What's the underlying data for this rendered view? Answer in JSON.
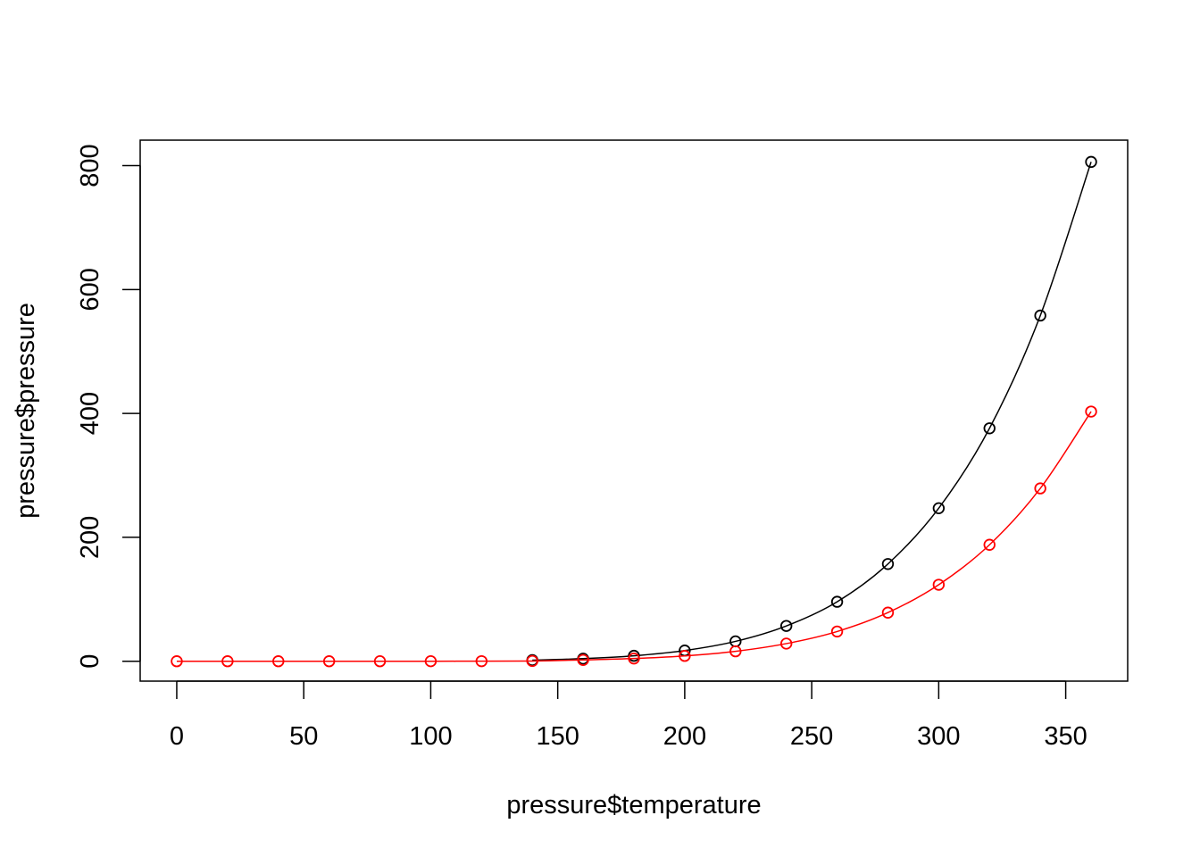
{
  "chart_data": {
    "type": "line",
    "title": "",
    "xlabel": "pressure$temperature",
    "ylabel": "pressure$pressure",
    "xlim": [
      -14.4,
      374.4
    ],
    "ylim": [
      -32.1,
      841.1
    ],
    "x_ticks": [
      0,
      50,
      100,
      150,
      200,
      250,
      300,
      350
    ],
    "y_ticks": [
      0,
      200,
      400,
      600,
      800
    ],
    "grid": false,
    "legend": "none",
    "x": [
      0,
      20,
      40,
      60,
      80,
      100,
      120,
      140,
      160,
      180,
      200,
      220,
      240,
      260,
      280,
      300,
      320,
      340,
      360
    ],
    "series": [
      {
        "color": "#000000",
        "marker": "open-circle",
        "x": [
          140,
          160,
          180,
          200,
          220,
          240,
          260,
          280,
          300,
          320,
          340,
          360
        ],
        "values": [
          1.8,
          4.2,
          8.8,
          17.3,
          32.1,
          57.0,
          96.0,
          157.0,
          247.0,
          376.0,
          558.0,
          806.0
        ]
      },
      {
        "color": "#ff0000",
        "marker": "open-circle",
        "x": [
          0,
          20,
          40,
          60,
          80,
          100,
          120,
          140,
          160,
          180,
          200,
          220,
          240,
          260,
          280,
          300,
          320,
          340,
          360
        ],
        "values": [
          0.0001,
          0.0006,
          0.003,
          0.0065,
          0.015,
          0.0385,
          0.108,
          0.4,
          2.1,
          4.4,
          8.65,
          16.05,
          28.5,
          48.0,
          78.5,
          123.5,
          188.0,
          279.0,
          403.0
        ]
      }
    ]
  }
}
